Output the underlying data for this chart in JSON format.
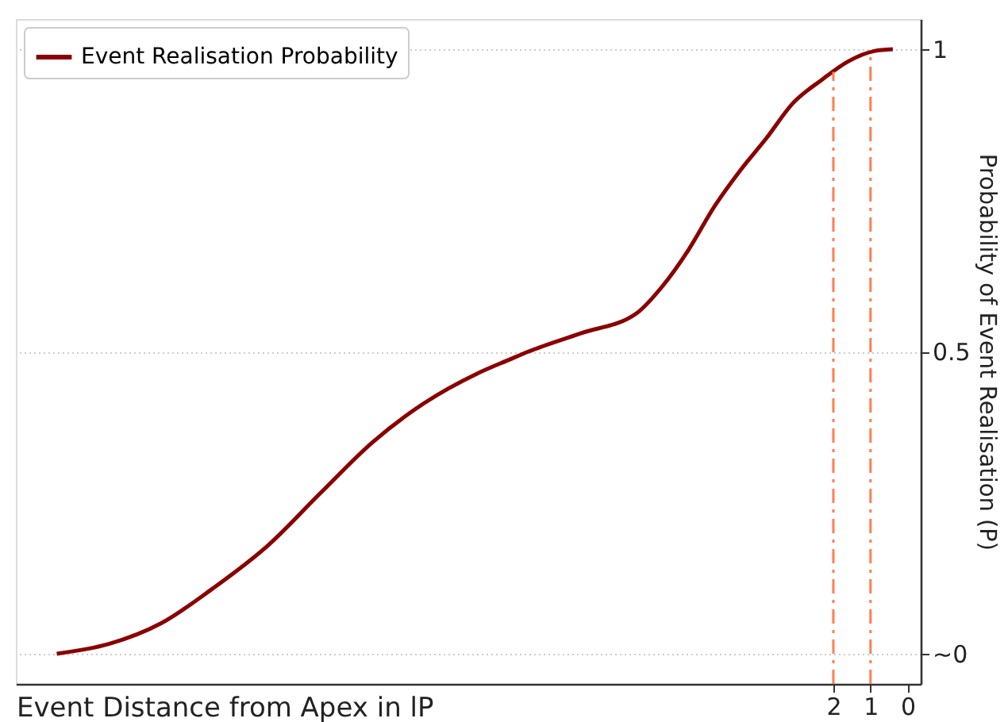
{
  "chart_data": {
    "type": "line",
    "xlabel": "Event Distance from Apex in lP",
    "ylabel": "Probability of Event Realisation (P)",
    "series": [
      {
        "name": "Event Realisation Probability",
        "color": "#8b0000",
        "x": [
          22.9,
          21.5,
          20.1,
          18.7,
          17.2,
          15.8,
          14.4,
          13.0,
          11.6,
          10.7,
          10.2,
          8.8,
          7.3,
          6.6,
          5.9,
          5.2,
          4.5,
          3.8,
          3.1,
          2.3,
          1.6,
          0.9,
          0.4
        ],
        "values": [
          0.0,
          0.016,
          0.05,
          0.108,
          0.18,
          0.266,
          0.35,
          0.415,
          0.463,
          0.487,
          0.5,
          0.53,
          0.563,
          0.608,
          0.668,
          0.74,
          0.8,
          0.853,
          0.91,
          0.95,
          0.98,
          0.997,
          1.0
        ]
      }
    ],
    "xlim": [
      24,
      -0.35
    ],
    "xticks": [
      2,
      1,
      0
    ],
    "ylim": [
      -0.05,
      1.05
    ],
    "yticks": [
      {
        "value": 0,
        "label": "~0"
      },
      0.5,
      1
    ],
    "ref_lines": [
      {
        "axis": "x",
        "value": 2,
        "color": "#ff7f50",
        "line_style": "dashed"
      },
      {
        "axis": "x",
        "value": 1,
        "color": "#ff7f50",
        "line_style": "dashed"
      }
    ],
    "grid": "y",
    "legend": "top left",
    "line_style": "solid",
    "marker": "none"
  }
}
